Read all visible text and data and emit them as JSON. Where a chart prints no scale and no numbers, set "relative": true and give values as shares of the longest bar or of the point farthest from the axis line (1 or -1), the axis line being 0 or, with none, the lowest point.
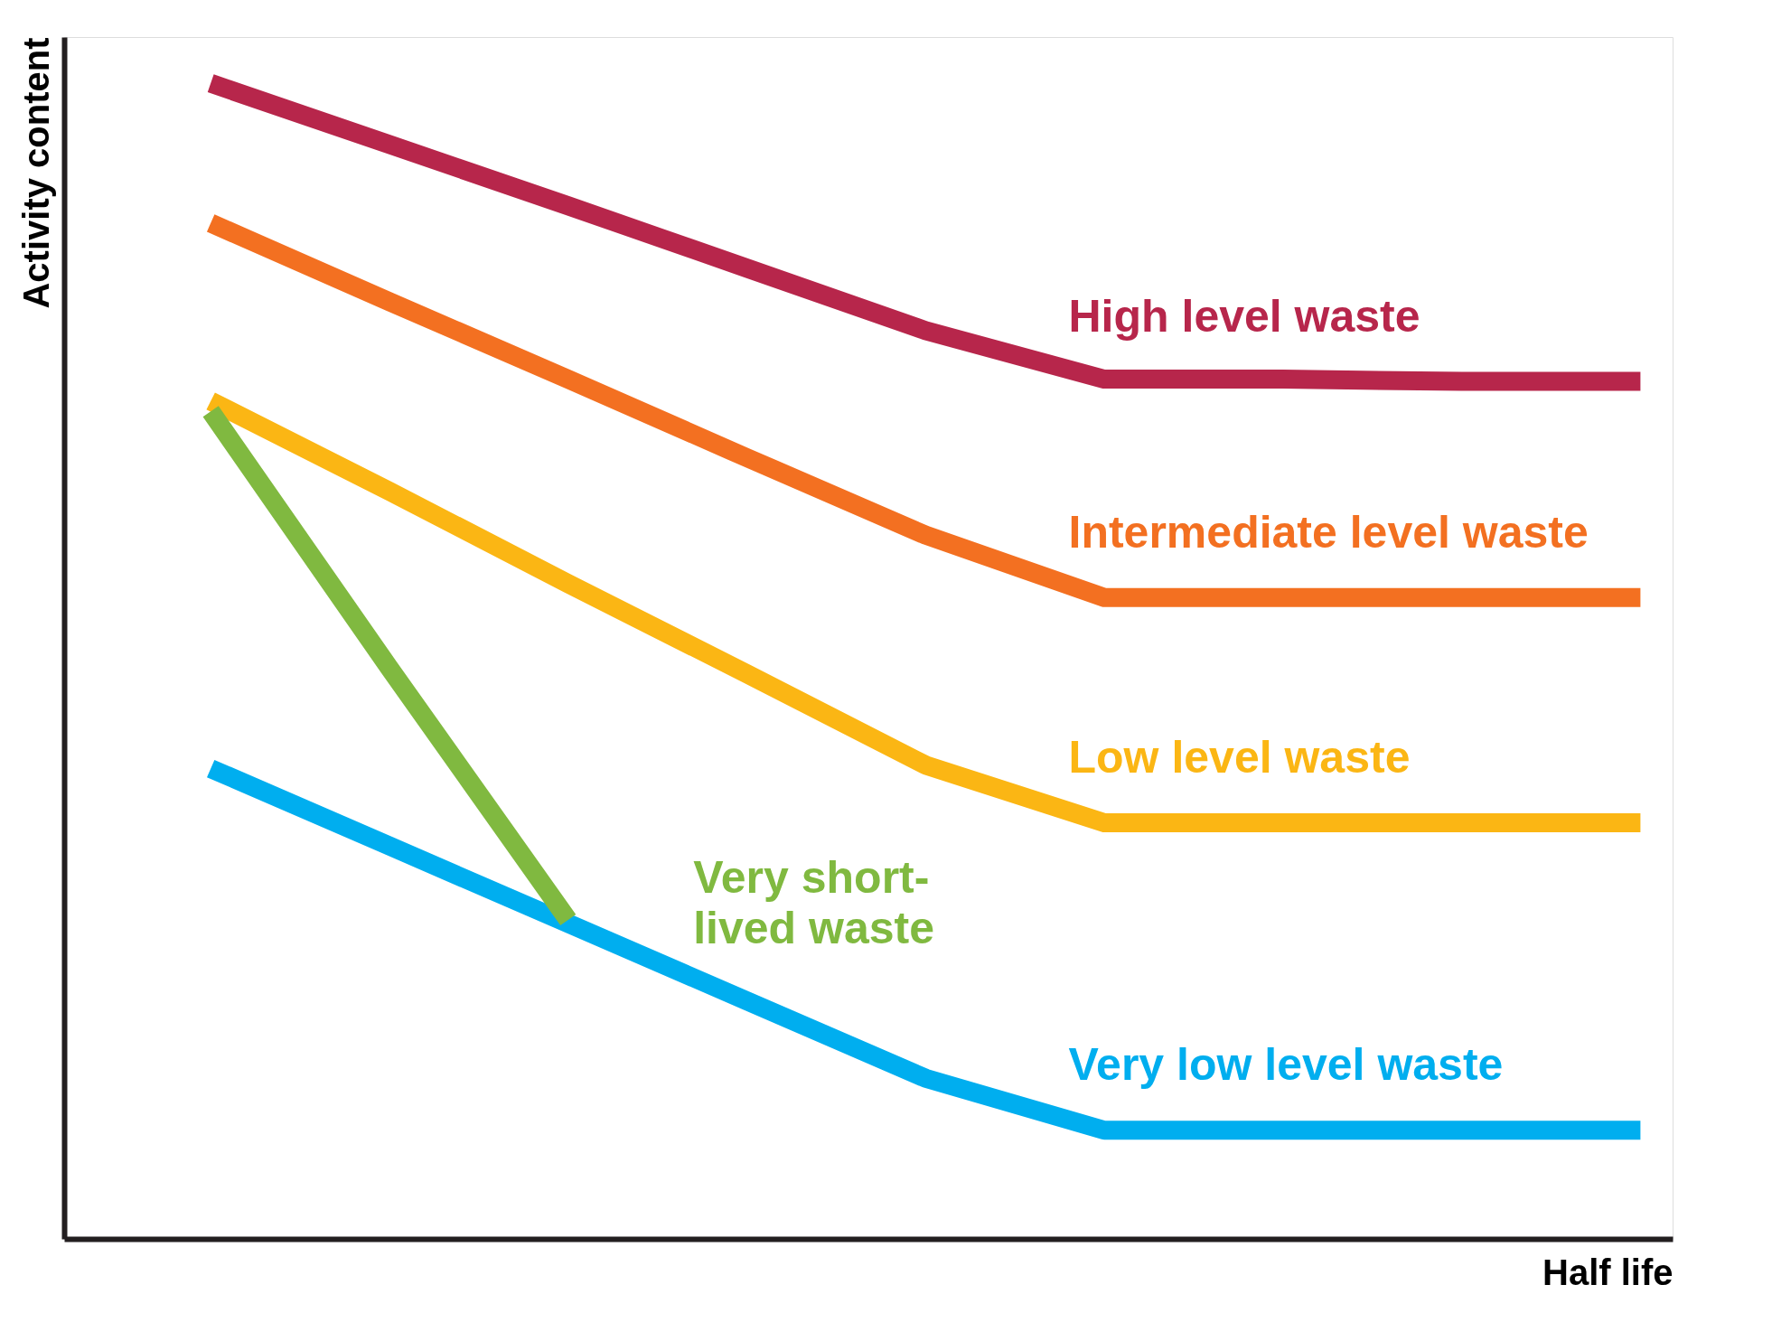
{
  "chart_data": {
    "type": "line",
    "relative": true,
    "xlabel": "Half life",
    "ylabel": "Activity content",
    "categories": [
      null,
      null,
      null,
      null,
      null,
      null,
      null,
      null,
      null
    ],
    "series": [
      {
        "name": "High level waste",
        "color": "#b7264b",
        "values": [
          1.0,
          0.947,
          0.894,
          0.84,
          0.786,
          0.744,
          0.744,
          0.742,
          0.742
        ]
      },
      {
        "name": "Intermediate level waste",
        "color": "#f37021",
        "values": [
          0.879,
          0.811,
          0.744,
          0.676,
          0.609,
          0.555,
          0.555,
          0.555,
          0.555
        ]
      },
      {
        "name": "Low level waste",
        "color": "#fbb614",
        "values": [
          0.725,
          0.647,
          0.567,
          0.489,
          0.41,
          0.36,
          0.36,
          0.36,
          0.36
        ]
      },
      {
        "name": "Very low level waste",
        "color": "#00aeef",
        "values": [
          0.407,
          0.34,
          0.273,
          0.206,
          0.139,
          0.094,
          0.094,
          0.094,
          0.094
        ]
      },
      {
        "name": "Very short-lived waste",
        "color": "#80b940",
        "values": [
          0.716,
          0.494,
          0.276,
          null,
          null,
          null,
          null,
          null,
          null
        ]
      }
    ],
    "grid": false,
    "tick_labels": false,
    "marker": "none",
    "line_style": "solid"
  }
}
